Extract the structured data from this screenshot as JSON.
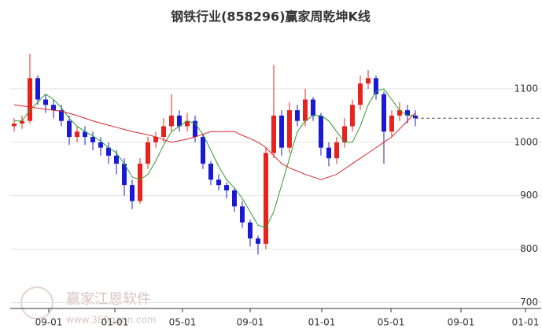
{
  "chart_data": {
    "type": "candlestick",
    "title": "钢铁行业(858296)赢家周乾坤K线",
    "watermark": {
      "text": "赢家江恩软件",
      "url": "www.360gann.com"
    },
    "x": [
      0,
      2,
      4,
      6,
      8,
      10,
      12,
      14,
      16,
      18,
      20,
      22,
      24,
      26,
      28,
      30,
      32,
      34,
      36,
      38,
      40,
      42,
      44,
      46,
      48,
      50,
      52,
      54,
      56,
      58,
      60,
      62,
      64,
      66,
      68,
      70,
      72,
      74,
      76,
      78,
      80,
      82,
      84,
      86,
      88,
      90,
      92,
      94,
      96,
      98,
      100,
      102
    ],
    "open": [
      1030,
      1035,
      1040,
      1120,
      1080,
      1070,
      1060,
      1040,
      1010,
      1020,
      1010,
      1000,
      990,
      975,
      960,
      920,
      890,
      960,
      1000,
      1010,
      1030,
      1050,
      1030,
      1040,
      1010,
      960,
      930,
      920,
      910,
      880,
      850,
      820,
      810,
      980,
      1050,
      990,
      1060,
      1040,
      1080,
      1050,
      990,
      970,
      1000,
      1030,
      1070,
      1110,
      1120,
      1090,
      1020,
      1050,
      1060,
      1050
    ],
    "high": [
      1045,
      1050,
      1165,
      1125,
      1090,
      1080,
      1070,
      1050,
      1030,
      1030,
      1020,
      1010,
      1000,
      985,
      970,
      930,
      970,
      1010,
      1020,
      1045,
      1090,
      1060,
      1055,
      1050,
      1015,
      965,
      940,
      925,
      915,
      890,
      855,
      825,
      990,
      1145,
      1060,
      1075,
      1070,
      1100,
      1085,
      1055,
      1000,
      1010,
      1045,
      1080,
      1125,
      1135,
      1125,
      1095,
      1060,
      1075,
      1070,
      1060
    ],
    "low": [
      1020,
      1025,
      1035,
      1070,
      1055,
      1045,
      1030,
      995,
      1000,
      995,
      985,
      975,
      960,
      940,
      900,
      875,
      885,
      950,
      990,
      1000,
      1020,
      1020,
      1020,
      1000,
      950,
      920,
      910,
      895,
      870,
      840,
      805,
      790,
      800,
      970,
      975,
      980,
      1030,
      1030,
      1040,
      975,
      955,
      960,
      990,
      1020,
      1060,
      1100,
      1080,
      960,
      1010,
      1040,
      1035,
      1030
    ],
    "close": [
      1035,
      1040,
      1120,
      1080,
      1070,
      1060,
      1040,
      1010,
      1020,
      1010,
      1000,
      990,
      975,
      960,
      920,
      890,
      960,
      1000,
      1010,
      1030,
      1050,
      1030,
      1040,
      1010,
      960,
      930,
      920,
      910,
      880,
      850,
      820,
      810,
      980,
      1050,
      990,
      1060,
      1040,
      1080,
      1050,
      990,
      970,
      1000,
      1030,
      1070,
      1110,
      1120,
      1090,
      1020,
      1050,
      1060,
      1050,
      1045
    ],
    "up_color": "#e8231f",
    "down_color": "#1a1ad6",
    "last_line_color": "#555555",
    "series": [
      {
        "color": "#2a9d2a",
        "values": [
          1040,
          1040,
          1060,
          1075,
          1090,
          1080,
          1065,
          1045,
          1030,
          1020,
          1012,
          1002,
          990,
          980,
          960,
          935,
          930,
          940,
          965,
          995,
          1020,
          1030,
          1040,
          1035,
          1015,
          985,
          955,
          930,
          915,
          895,
          870,
          845,
          840,
          870,
          920,
          970,
          1020,
          1040,
          1050,
          1050,
          1040,
          1020,
          1000,
          1000,
          1030,
          1070,
          1095,
          1100,
          1080,
          1060,
          1050,
          1050
        ]
      },
      {
        "color": "#d9262a",
        "values": [
          1070,
          1068,
          1066,
          1064,
          1062,
          1060,
          1058,
          1054,
          1050,
          1045,
          1040,
          1036,
          1032,
          1028,
          1024,
          1020,
          1017,
          1014,
          1010,
          1005,
          1000,
          1003,
          1006,
          1010,
          1015,
          1020,
          1020,
          1020,
          1020,
          1013,
          1007,
          1000,
          990,
          975,
          960,
          952,
          946,
          940,
          935,
          930,
          935,
          940,
          950,
          960,
          970,
          980,
          990,
          1000,
          1010,
          1025,
          1040,
          1055
        ]
      }
    ],
    "xlim": [
      -1,
      134
    ],
    "xticks": [
      {
        "value": 8.8,
        "label": "09-01"
      },
      {
        "value": 25.6,
        "label": "01-01"
      },
      {
        "value": 42.8,
        "label": "05-01"
      },
      {
        "value": 60,
        "label": "09-01"
      },
      {
        "value": 78.2,
        "label": "01-01"
      },
      {
        "value": 95.8,
        "label": "05-01"
      },
      {
        "value": 113.6,
        "label": "09-01"
      },
      {
        "value": 130,
        "label": "01-01"
      }
    ],
    "ylim": [
      689,
      1200
    ],
    "yticks": [
      700,
      800,
      900,
      1000,
      1100
    ],
    "grid": true
  }
}
